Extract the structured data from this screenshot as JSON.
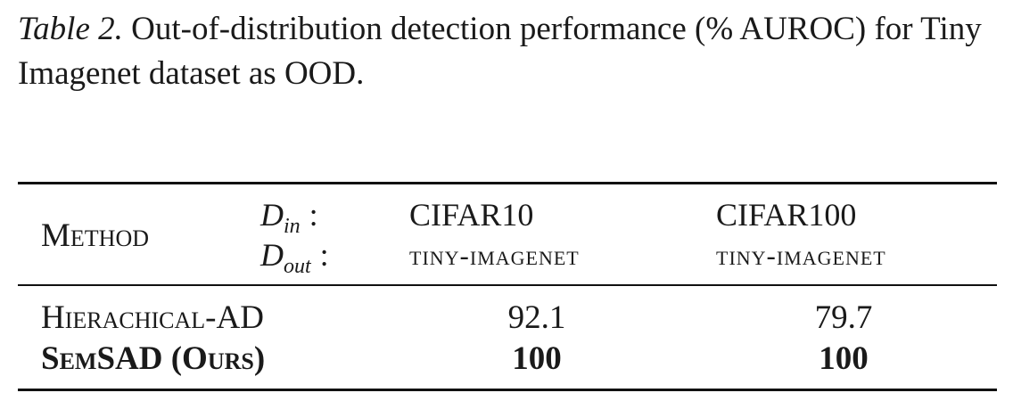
{
  "caption": {
    "label": "Table 2.",
    "text": "Out-of-distribution detection performance (% AUROC) for Tiny Imagenet dataset as OOD."
  },
  "table": {
    "method_header": "Method",
    "din_symbol": "D",
    "din_sub": "in",
    "dout_symbol": "D",
    "dout_sub": "out",
    "colon": ":",
    "columns": [
      {
        "in": "CIFAR10",
        "out": "tiny-imagenet"
      },
      {
        "in": "CIFAR100",
        "out": "tiny-imagenet"
      }
    ],
    "rows": [
      {
        "method": "Hierachical-AD",
        "values": [
          "92.1",
          "79.7"
        ]
      },
      {
        "method": "SemSAD (Ours)",
        "values": [
          "100",
          "100"
        ]
      }
    ]
  }
}
